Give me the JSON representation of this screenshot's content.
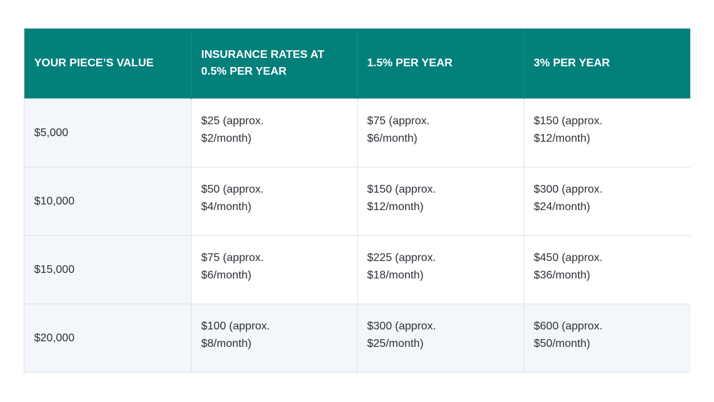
{
  "table": {
    "headers": [
      "YOUR PIECE’S VALUE",
      "INSURANCE RATES AT 0.5% PER YEAR",
      "1.5% PER YEAR",
      "3% PER YEAR"
    ],
    "rows": [
      {
        "value": "$5,000",
        "rates": [
          {
            "line1": "$25 (approx.",
            "line2": "$2/month)"
          },
          {
            "line1": "$75 (approx.",
            "line2": "$6/month)"
          },
          {
            "line1": "$150 (approx.",
            "line2": "$12/month)"
          }
        ]
      },
      {
        "value": "$10,000",
        "rates": [
          {
            "line1": "$50 (approx.",
            "line2": "$4/month)"
          },
          {
            "line1": "$150 (approx.",
            "line2": "$12/month)"
          },
          {
            "line1": "$300 (approx.",
            "line2": "$24/month)"
          }
        ]
      },
      {
        "value": "$15,000",
        "rates": [
          {
            "line1": "$75 (approx.",
            "line2": "$6/month)"
          },
          {
            "line1": "$225 (approx.",
            "line2": "$18/month)"
          },
          {
            "line1": "$450 (approx.",
            "line2": "$36/month)"
          }
        ]
      },
      {
        "value": "$20,000",
        "rates": [
          {
            "line1": "$100 (approx.",
            "line2": "$8/month)"
          },
          {
            "line1": "$300 (approx.",
            "line2": "$25/month)"
          },
          {
            "line1": "$600 (approx.",
            "line2": "$50/month)"
          }
        ]
      }
    ]
  },
  "colors": {
    "header_bg": "#04807b",
    "header_text": "#ffffff",
    "alt_cell_bg": "#f3f6fa",
    "border": "#dfe5ea"
  }
}
